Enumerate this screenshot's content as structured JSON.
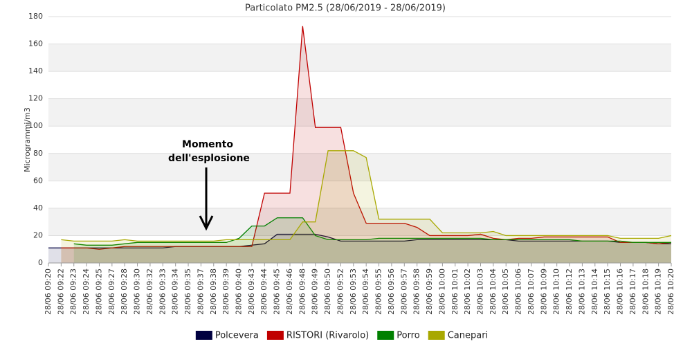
{
  "chart_data": {
    "type": "area",
    "title": "Particolato PM2.5 (28/06/2019 - 28/06/2019)",
    "y_label": "Microgrammi/m3",
    "annotation": [
      "Momento",
      "dell'esplosione"
    ],
    "categories": [
      "28/06 09:20",
      "28/06 09:22",
      "28/06 09:23",
      "28/06 09:24",
      "28/06 09:25",
      "28/06 09:27",
      "28/06 09:28",
      "28/06 09:30",
      "28/06 09:32",
      "28/06 09:33",
      "28/06 09:34",
      "28/06 09:35",
      "28/06 09:37",
      "28/06 09:38",
      "28/06 09:39",
      "28/06 09:40",
      "28/06 09:43",
      "28/06 09:44",
      "28/06 09:45",
      "28/06 09:46",
      "28/06 09:48",
      "28/06 09:49",
      "28/06 09:50",
      "28/06 09:52",
      "28/06 09:53",
      "28/06 09:54",
      "28/06 09:55",
      "28/06 09:56",
      "28/06 09:57",
      "28/06 09:58",
      "28/06 09:59",
      "28/06 10:00",
      "28/06 10:01",
      "28/06 10:02",
      "28/06 10:03",
      "28/06 10:04",
      "28/06 10:05",
      "28/06 10:06",
      "28/06 10:07",
      "28/06 10:09",
      "28/06 10:10",
      "28/06 10:12",
      "28/06 10:13",
      "28/06 10:14",
      "28/06 10:15",
      "28/06 10:16",
      "28/06 10:17",
      "28/06 10:18",
      "28/06 10:19",
      "28/06 10:20"
    ],
    "series": [
      {
        "name": "Polcevera",
        "color": "#000040",
        "values": [
          11,
          11,
          11,
          11,
          11,
          11,
          11,
          11,
          11,
          11,
          12,
          12,
          12,
          12,
          12,
          12,
          13,
          14,
          21,
          21,
          21,
          21,
          19,
          16,
          16,
          16,
          16,
          16,
          16,
          17,
          17,
          17,
          17,
          17,
          17,
          17,
          17,
          16,
          16,
          16,
          16,
          16,
          16,
          16,
          16,
          15,
          15,
          15,
          14,
          14
        ]
      },
      {
        "name": "RISTORI (Rivarolo)",
        "color": "#c00000",
        "values": [
          null,
          11,
          11,
          11,
          10,
          11,
          12,
          12,
          12,
          12,
          12,
          12,
          12,
          12,
          12,
          12,
          12,
          51,
          51,
          51,
          173,
          99,
          99,
          99,
          51,
          29,
          29,
          29,
          29,
          26,
          20,
          20,
          20,
          20,
          21,
          18,
          17,
          18,
          18,
          19,
          19,
          19,
          19,
          19,
          19,
          15,
          15,
          15,
          14,
          15
        ]
      },
      {
        "name": "Porro",
        "color": "#008000",
        "values": [
          null,
          null,
          14,
          13,
          13,
          13,
          14,
          15,
          15,
          15,
          15,
          15,
          15,
          15,
          15,
          18,
          27,
          27,
          33,
          33,
          33,
          20,
          17,
          17,
          17,
          17,
          18,
          18,
          18,
          18,
          18,
          18,
          18,
          18,
          18,
          17,
          17,
          17,
          17,
          17,
          17,
          17,
          16,
          16,
          16,
          16,
          15,
          15,
          15,
          15
        ]
      },
      {
        "name": "Canepari",
        "color": "#a8a800",
        "values": [
          null,
          17,
          16,
          16,
          16,
          16,
          17,
          16,
          16,
          16,
          16,
          16,
          16,
          16,
          17,
          17,
          17,
          17,
          17,
          17,
          30,
          30,
          82,
          82,
          82,
          77,
          32,
          32,
          32,
          32,
          32,
          22,
          22,
          22,
          22,
          23,
          20,
          20,
          20,
          20,
          20,
          20,
          20,
          20,
          20,
          18,
          18,
          18,
          18,
          20
        ]
      }
    ],
    "ylim": [
      0,
      180
    ],
    "yticks": [
      0,
      20,
      40,
      60,
      80,
      100,
      120,
      140,
      160,
      180
    ],
    "grid": true
  }
}
